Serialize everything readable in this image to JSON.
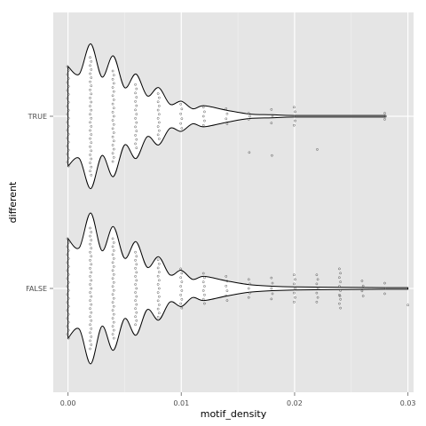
{
  "chart_data": {
    "type": "violin",
    "title": "",
    "xlabel": "motif_density",
    "ylabel": "different",
    "orientation": "horizontal",
    "xlim": [
      -0.0013,
      0.0305
    ],
    "x_ticks": [
      0.0,
      0.01,
      0.02,
      0.03
    ],
    "x_tick_labels": [
      "0.00",
      "0.01",
      "0.02",
      "0.03"
    ],
    "categories": [
      "TRUE",
      "FALSE"
    ],
    "grid": true,
    "legend": "none",
    "colors": {
      "panel": "#e5e5e5",
      "grid_major": "#ffffff",
      "grid_minor": "#f2f2f2",
      "violin_fill": "#ffffff",
      "violin_outline": "#000000",
      "points": "#555555"
    },
    "series": [
      {
        "name": "TRUE",
        "density_profile": [
          [
            0.0,
            0.66
          ],
          [
            0.001,
            0.56
          ],
          [
            0.002,
            0.96
          ],
          [
            0.003,
            0.52
          ],
          [
            0.004,
            0.8
          ],
          [
            0.005,
            0.38
          ],
          [
            0.006,
            0.56
          ],
          [
            0.007,
            0.27
          ],
          [
            0.008,
            0.38
          ],
          [
            0.009,
            0.16
          ],
          [
            0.01,
            0.2
          ],
          [
            0.011,
            0.1
          ],
          [
            0.012,
            0.14
          ],
          [
            0.014,
            0.08
          ],
          [
            0.016,
            0.03
          ],
          [
            0.018,
            0.02
          ],
          [
            0.02,
            0.01
          ],
          [
            0.024,
            0.01
          ],
          [
            0.028,
            0.01
          ]
        ],
        "points": [
          [
            0.0,
            0.66
          ],
          [
            0.002,
            0.78
          ],
          [
            0.004,
            0.6
          ],
          [
            0.006,
            0.42
          ],
          [
            0.008,
            0.3
          ],
          [
            0.01,
            0.16
          ],
          [
            0.012,
            0.12
          ],
          [
            0.014,
            0.1
          ],
          [
            0.016,
            0.04
          ],
          [
            0.018,
            0.09
          ],
          [
            0.02,
            0.12
          ],
          [
            0.022,
            -0.44
          ],
          [
            0.028,
            0.04
          ],
          [
            0.018,
            -0.52
          ],
          [
            0.016,
            -0.48
          ]
        ]
      },
      {
        "name": "FALSE",
        "density_profile": [
          [
            0.0,
            0.66
          ],
          [
            0.001,
            0.54
          ],
          [
            0.002,
            1.0
          ],
          [
            0.003,
            0.5
          ],
          [
            0.004,
            0.82
          ],
          [
            0.005,
            0.4
          ],
          [
            0.006,
            0.62
          ],
          [
            0.007,
            0.28
          ],
          [
            0.008,
            0.42
          ],
          [
            0.009,
            0.18
          ],
          [
            0.01,
            0.24
          ],
          [
            0.011,
            0.12
          ],
          [
            0.012,
            0.16
          ],
          [
            0.014,
            0.1
          ],
          [
            0.016,
            0.05
          ],
          [
            0.018,
            0.03
          ],
          [
            0.02,
            0.02
          ],
          [
            0.024,
            0.015
          ],
          [
            0.028,
            0.01
          ],
          [
            0.03,
            0.01
          ]
        ],
        "points": [
          [
            0.0,
            0.66
          ],
          [
            0.002,
            0.8
          ],
          [
            0.004,
            0.66
          ],
          [
            0.006,
            0.48
          ],
          [
            0.008,
            0.38
          ],
          [
            0.01,
            0.26
          ],
          [
            0.012,
            0.2
          ],
          [
            0.014,
            0.16
          ],
          [
            0.016,
            0.12
          ],
          [
            0.018,
            0.14
          ],
          [
            0.02,
            0.18
          ],
          [
            0.022,
            0.18
          ],
          [
            0.024,
            0.26
          ],
          [
            0.026,
            0.1
          ],
          [
            0.024,
            -0.1
          ],
          [
            0.028,
            0.07
          ],
          [
            0.03,
            -0.22
          ]
        ]
      }
    ]
  }
}
